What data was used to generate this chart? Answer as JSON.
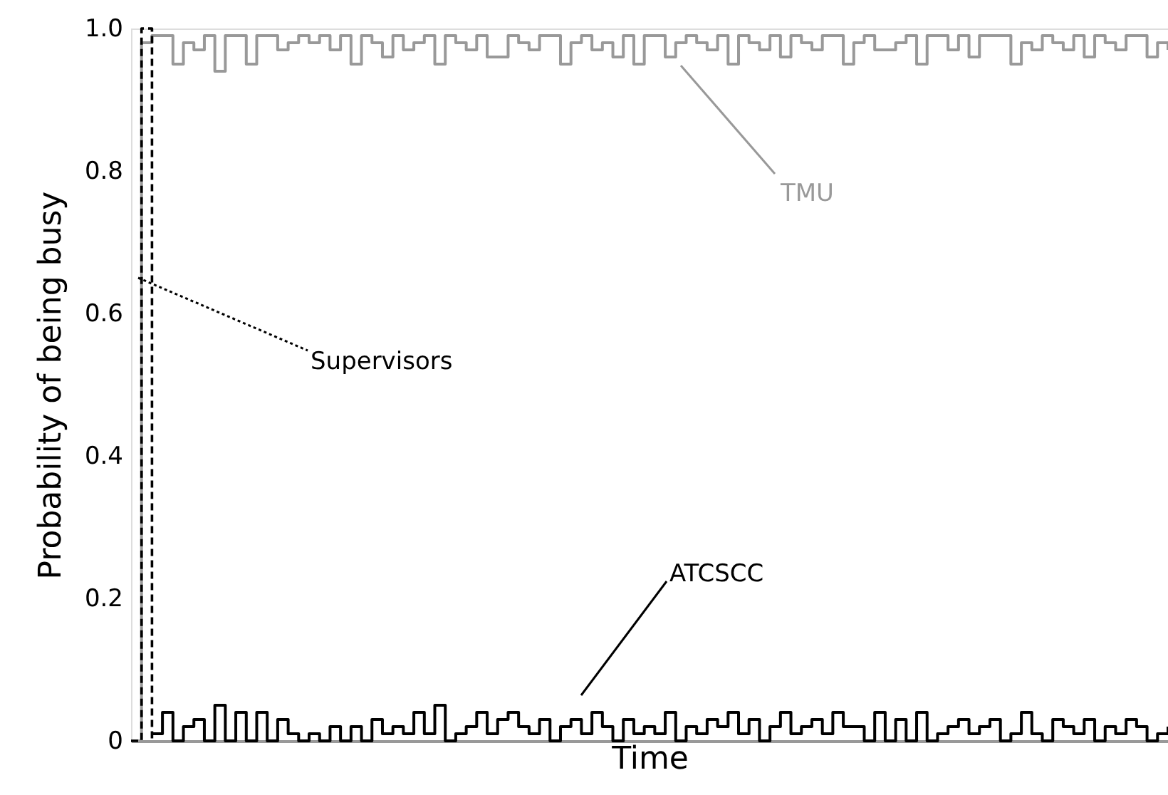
{
  "chart_data": {
    "type": "step",
    "xlabel": "Time",
    "ylabel": "Probability of being busy",
    "categories": [
      null,
      null,
      null,
      null,
      null,
      null,
      null,
      null,
      null,
      null,
      null,
      null,
      null,
      null,
      null,
      null,
      null,
      null,
      null,
      null,
      null,
      null,
      null,
      null,
      null,
      null,
      null,
      null,
      null,
      null,
      null,
      null,
      null,
      null,
      null,
      null,
      null,
      null,
      null,
      null,
      null,
      null,
      null,
      null,
      null,
      null,
      null,
      null,
      null,
      null,
      null,
      null,
      null,
      null,
      null,
      null,
      null,
      null,
      null,
      null,
      null,
      null,
      null,
      null,
      null,
      null,
      null,
      null,
      null,
      null,
      null,
      null,
      null,
      null,
      null,
      null,
      null,
      null,
      null,
      null,
      null,
      null,
      null,
      null,
      null,
      null,
      null,
      null,
      null,
      null,
      null,
      null,
      null,
      null,
      null,
      null,
      null,
      null,
      null,
      null
    ],
    "series": [
      {
        "name": "TMU",
        "color": "#999999",
        "line_style": "solid",
        "values": [
          0,
          0.98,
          0.99,
          0.99,
          0.95,
          0.98,
          0.97,
          0.99,
          0.94,
          0.99,
          0.99,
          0.95,
          0.99,
          0.99,
          0.97,
          0.98,
          0.99,
          0.98,
          0.99,
          0.97,
          0.99,
          0.95,
          0.99,
          0.98,
          0.96,
          0.99,
          0.97,
          0.98,
          0.99,
          0.95,
          0.99,
          0.98,
          0.97,
          0.99,
          0.96,
          0.96,
          0.99,
          0.98,
          0.97,
          0.99,
          0.99,
          0.95,
          0.98,
          0.99,
          0.97,
          0.98,
          0.96,
          0.99,
          0.95,
          0.99,
          0.99,
          0.96,
          0.98,
          0.99,
          0.98,
          0.97,
          0.99,
          0.95,
          0.99,
          0.98,
          0.97,
          0.99,
          0.96,
          0.99,
          0.98,
          0.97,
          0.99,
          0.99,
          0.95,
          0.98,
          0.99,
          0.97,
          0.97,
          0.98,
          0.99,
          0.95,
          0.99,
          0.99,
          0.97,
          0.99,
          0.96,
          0.99,
          0.99,
          0.99,
          0.95,
          0.98,
          0.97,
          0.99,
          0.98,
          0.97,
          0.99,
          0.96,
          0.99,
          0.98,
          0.97,
          0.99,
          0.99,
          0.96,
          0.98,
          0.97
        ]
      },
      {
        "name": "ATCSCC",
        "color": "#000000",
        "line_style": "solid",
        "values": [
          null,
          null,
          0.01,
          0.04,
          0,
          0.02,
          0.03,
          0,
          0.05,
          0,
          0.04,
          0,
          0.04,
          0,
          0.03,
          0.01,
          0,
          0.01,
          0,
          0.02,
          0,
          0.02,
          0,
          0.03,
          0.01,
          0.02,
          0.01,
          0.04,
          0.01,
          0.05,
          0,
          0.01,
          0.02,
          0.04,
          0.01,
          0.03,
          0.04,
          0.02,
          0.01,
          0.03,
          0,
          0.02,
          0.03,
          0.01,
          0.04,
          0.02,
          0,
          0.03,
          0.01,
          0.02,
          0.01,
          0.04,
          0,
          0.02,
          0.01,
          0.03,
          0.02,
          0.04,
          0.01,
          0.03,
          0,
          0.02,
          0.04,
          0.01,
          0.02,
          0.03,
          0.01,
          0.04,
          0.02,
          0.02,
          0,
          0.04,
          0,
          0.03,
          0,
          0.04,
          0,
          0.01,
          0.02,
          0.03,
          0.01,
          0.02,
          0.03,
          0,
          0.01,
          0.04,
          0.01,
          0,
          0.03,
          0.02,
          0.01,
          0.03,
          0,
          0.02,
          0.01,
          0.03,
          0.02,
          0,
          0.01,
          0.02
        ]
      },
      {
        "name": "Supervisors",
        "color": "#000000",
        "line_style": "dashed",
        "values": [
          0,
          1.0,
          0,
          null,
          null,
          null,
          null,
          null,
          null,
          null,
          null,
          null,
          null,
          null,
          null,
          null,
          null,
          null,
          null,
          null,
          null,
          null,
          null,
          null,
          null,
          null,
          null,
          null,
          null,
          null,
          null,
          null,
          null,
          null,
          null,
          null,
          null,
          null,
          null,
          null,
          null,
          null,
          null,
          null,
          null,
          null,
          null,
          null,
          null,
          null,
          null,
          null,
          null,
          null,
          null,
          null,
          null,
          null,
          null,
          null,
          null,
          null,
          null,
          null,
          null,
          null,
          null,
          null,
          null,
          null,
          null,
          null,
          null,
          null,
          null,
          null,
          null,
          null,
          null,
          null,
          null,
          null,
          null,
          null,
          null,
          null,
          null,
          null,
          null,
          null,
          null,
          null,
          null,
          null,
          null,
          null,
          null,
          null,
          null,
          null
        ]
      }
    ],
    "ylim": [
      0,
      1
    ],
    "yticks": [
      0,
      0.2,
      0.4,
      0.6,
      0.8,
      {
        "value": 1,
        "label": "1.0"
      }
    ],
    "grid": false,
    "tick_labels": "y",
    "marker": "none"
  }
}
